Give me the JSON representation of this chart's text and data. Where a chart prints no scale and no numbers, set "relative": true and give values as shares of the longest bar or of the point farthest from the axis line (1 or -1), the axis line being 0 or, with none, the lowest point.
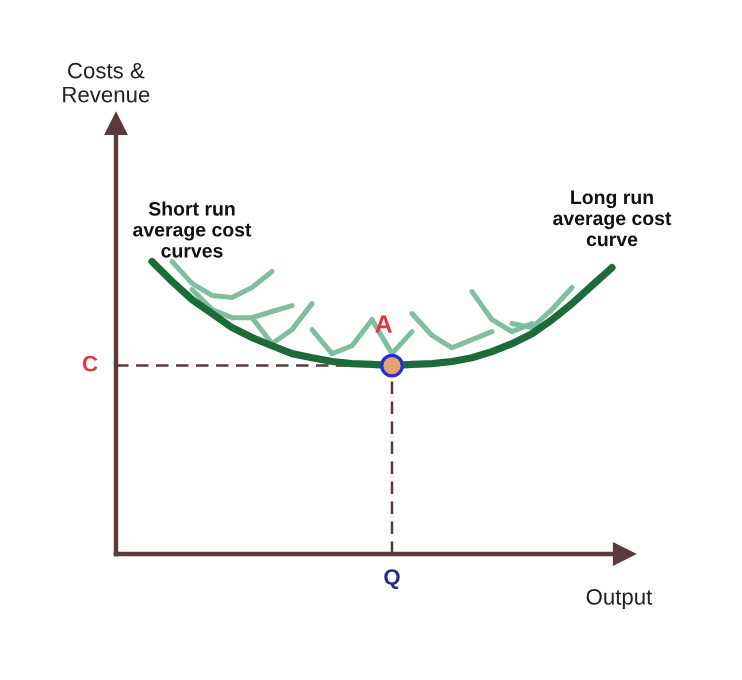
{
  "chart_data": {
    "type": "line",
    "relative": true,
    "xlabel": "Output",
    "legend": false,
    "line_style": "solid",
    "categories": [
      null,
      null,
      null,
      null,
      null,
      null,
      null,
      null,
      null,
      null,
      null,
      null,
      null,
      null,
      null,
      null,
      null,
      null,
      null,
      null,
      null,
      null,
      null,
      null
    ],
    "series": [
      {
        "name": "Long run\naverage cost\ncurve",
        "color": "#1e6b3a",
        "values": [
          1.0,
          0.932,
          0.87,
          0.822,
          0.774,
          0.74,
          0.712,
          0.685,
          0.671,
          0.658,
          0.651,
          0.648,
          0.644,
          0.648,
          0.651,
          0.658,
          0.671,
          0.692,
          0.719,
          0.753,
          0.801,
          0.856,
          0.918,
          0.979
        ]
      },
      {
        "color": "#7fbf9f",
        "values": [
          null,
          1.0,
          0.925,
          0.884,
          0.877,
          0.911,
          0.966,
          null,
          null,
          null,
          null,
          null,
          null,
          null,
          null,
          null,
          null,
          null,
          null,
          null,
          null,
          null,
          null,
          null
        ]
      },
      {
        "color": "#7fbf9f",
        "values": [
          null,
          null,
          0.904,
          0.836,
          0.808,
          0.808,
          0.829,
          0.849,
          null,
          null,
          null,
          null,
          null,
          null,
          null,
          null,
          null,
          null,
          null,
          null,
          null,
          null,
          null,
          null
        ]
      },
      {
        "color": "#7fbf9f",
        "values": [
          null,
          null,
          null,
          null,
          null,
          0.808,
          0.719,
          0.767,
          0.856,
          null,
          null,
          null,
          null,
          null,
          null,
          null,
          null,
          null,
          null,
          null,
          null,
          null,
          null,
          null
        ]
      },
      {
        "color": "#7fbf9f",
        "values": [
          null,
          null,
          null,
          null,
          null,
          null,
          null,
          null,
          0.767,
          0.685,
          0.712,
          0.801,
          null,
          null,
          null,
          null,
          null,
          null,
          null,
          null,
          null,
          null,
          null,
          null
        ]
      },
      {
        "color": "#7fbf9f",
        "values": [
          null,
          null,
          null,
          null,
          null,
          null,
          null,
          null,
          null,
          null,
          null,
          0.801,
          0.685,
          0.76,
          null,
          null,
          null,
          null,
          null,
          null,
          null,
          null,
          null,
          null
        ]
      },
      {
        "color": "#7fbf9f",
        "values": [
          null,
          null,
          null,
          null,
          null,
          null,
          null,
          null,
          null,
          null,
          null,
          null,
          null,
          0.822,
          0.747,
          0.705,
          0.733,
          0.76,
          null,
          null,
          null,
          null,
          null,
          null
        ]
      },
      {
        "color": "#7fbf9f",
        "values": [
          null,
          null,
          null,
          null,
          null,
          null,
          null,
          null,
          null,
          null,
          null,
          null,
          null,
          null,
          null,
          null,
          0.897,
          0.801,
          0.76,
          0.788,
          null,
          null,
          null,
          null
        ]
      },
      {
        "color": "#7fbf9f",
        "values": [
          null,
          null,
          null,
          null,
          null,
          null,
          null,
          null,
          null,
          null,
          null,
          null,
          null,
          null,
          null,
          null,
          null,
          null,
          0.788,
          0.774,
          0.836,
          0.911,
          null,
          null
        ]
      }
    ],
    "ref_lines": [
      {
        "axis": "y",
        "value": 0.644,
        "label": "C",
        "color": "#5a3a3a",
        "line_style": "dashed"
      }
    ],
    "annotations": [
      "Costs &\nRevenue",
      "Short run\naverage cost\ncurves",
      {
        "text": "A",
        "y": 0.644
      },
      "Q"
    ]
  }
}
